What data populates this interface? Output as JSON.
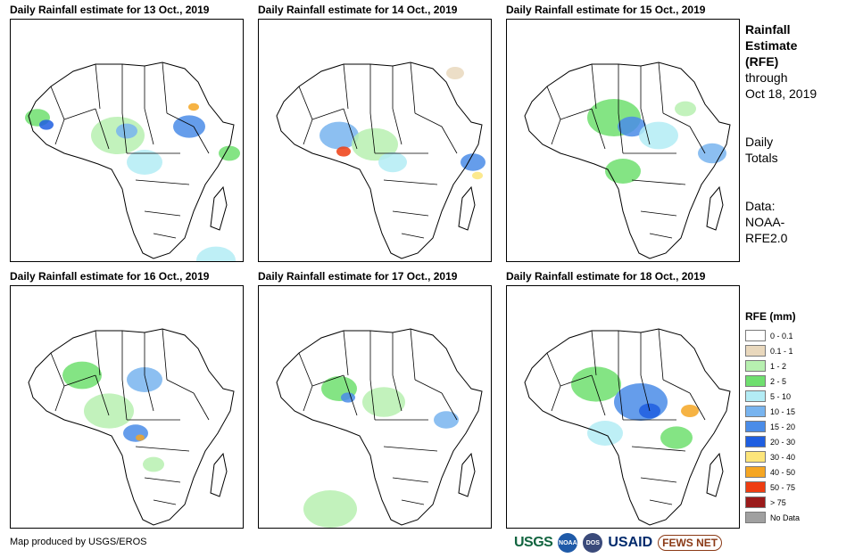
{
  "panels": [
    {
      "title": "Daily Rainfall estimate for 13 Oct., 2019"
    },
    {
      "title": "Daily Rainfall estimate for 14 Oct., 2019"
    },
    {
      "title": "Daily Rainfall estimate for 15 Oct., 2019"
    },
    {
      "title": "Daily Rainfall estimate for 16 Oct., 2019"
    },
    {
      "title": "Daily Rainfall estimate for 17 Oct., 2019"
    },
    {
      "title": "Daily Rainfall estimate for 18 Oct., 2019"
    }
  ],
  "info": {
    "title_line1": "Rainfall",
    "title_line2": "Estimate",
    "title_line3": "(RFE)",
    "through_line1": "through",
    "through_line2": "Oct 18, 2019",
    "daily_line1": "Daily",
    "daily_line2": "Totals",
    "data_line1": "Data:",
    "data_line2": "NOAA-",
    "data_line3": "RFE2.0"
  },
  "legend": {
    "title": "RFE (mm)",
    "items": [
      {
        "label": "0 - 0.1",
        "color": "#ffffff"
      },
      {
        "label": "0.1 - 1",
        "color": "#e9d8bd"
      },
      {
        "label": "1 - 2",
        "color": "#b7f0b0"
      },
      {
        "label": "2 - 5",
        "color": "#6fdf6f"
      },
      {
        "label": "5 - 10",
        "color": "#b3ecf5"
      },
      {
        "label": "10 - 15",
        "color": "#78b4ef"
      },
      {
        "label": "15 - 20",
        "color": "#4a8ce8"
      },
      {
        "label": "20 - 30",
        "color": "#1f5ee0"
      },
      {
        "label": "30 - 40",
        "color": "#fce57a"
      },
      {
        "label": "40 - 50",
        "color": "#f5a623"
      },
      {
        "label": "50 - 75",
        "color": "#ee3d12"
      },
      {
        "label": "> 75",
        "color": "#9b1b1b"
      },
      {
        "label": "No Data",
        "color": "#a0a0a0"
      }
    ]
  },
  "footer": {
    "credit": "Map produced by USGS/EROS",
    "logo_usgs": "USGS",
    "logo_noaa": "NOAA",
    "logo_dos": "DOS",
    "logo_usaid": "USAID",
    "logo_fews": "FEWS NET"
  }
}
